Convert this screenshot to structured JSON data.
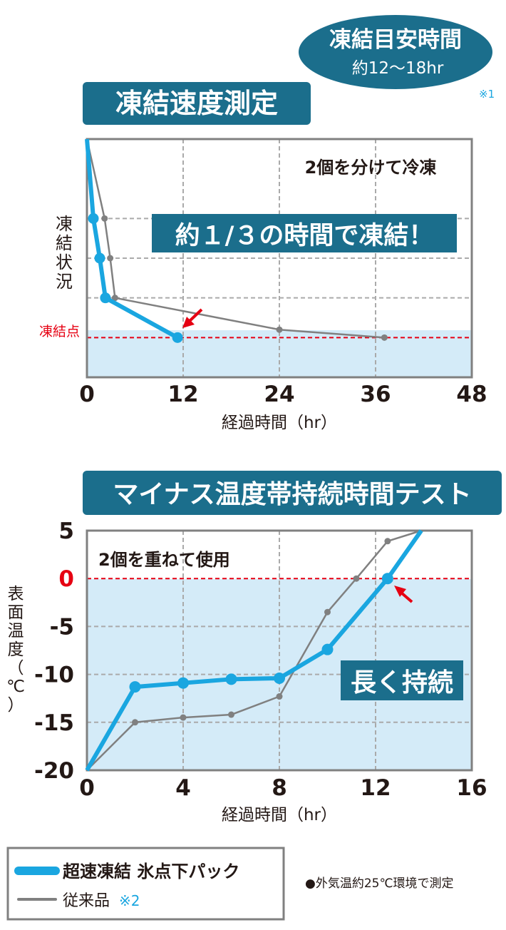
{
  "colors": {
    "badge_bg": "#1b6e8c",
    "super_line": "#1aa6e0",
    "conventional_line": "#808080",
    "freeze_line": "#e60012",
    "shade": "#d4ebf8",
    "frame": "#808080",
    "grid": "#aaaaaa",
    "text": "#231815",
    "red_text": "#e60012"
  },
  "badge": {
    "title": "凍結目安時間",
    "subtitle": "約12～18hr",
    "note": "※1"
  },
  "legend": {
    "super_label": "超速凍結 氷点下パック",
    "conventional_label": "従来品",
    "conventional_note": "※2"
  },
  "footnote": "●外気温約25℃環境で測定",
  "chart_data": [
    {
      "type": "line",
      "title": "凍結速度測定",
      "annotation_top": "2個を分けて冷凍",
      "callout": "約１/３の時間で凍結！",
      "xlabel": "経過時間（hr）",
      "ylabel": "凍結状況",
      "freeze_label": "凍結点",
      "x_ticks": [
        "0",
        "12",
        "24",
        "36",
        "48"
      ],
      "xlim": [
        0,
        48
      ],
      "ylim": [
        0,
        6
      ],
      "y_gridlines": [
        1,
        2,
        3,
        4,
        5
      ],
      "freeze_point": 1,
      "shade_below_freeze": true,
      "grid": true,
      "series": [
        {
          "key": "super",
          "name": "超速凍結 氷点下パック",
          "x": [
            0,
            0.8,
            1.6,
            2.3,
            11.3
          ],
          "y": [
            6,
            4,
            3,
            2,
            1
          ]
        },
        {
          "key": "conventional",
          "name": "従来品",
          "x": [
            0,
            2.2,
            2.9,
            3.5,
            24,
            37.1
          ],
          "y": [
            6,
            4,
            3,
            2,
            1.2,
            1
          ]
        }
      ]
    },
    {
      "type": "line",
      "title": "マイナス温度帯持続時間テスト",
      "annotation_top": "2個を重ねて使用",
      "callout": "長く持続",
      "xlabel": "経過時間（hr）",
      "ylabel": "表面温度（℃）",
      "x_ticks": [
        "0",
        "4",
        "8",
        "12",
        "16"
      ],
      "y_ticks": [
        "5",
        "0",
        "-5",
        "-10",
        "-15",
        "-20"
      ],
      "y_tick_values": [
        5,
        0,
        -5,
        -10,
        -15,
        -20
      ],
      "xlim": [
        0,
        16
      ],
      "ylim": [
        -20,
        5
      ],
      "freeze_point": 0,
      "shade_below_freeze": true,
      "grid": true,
      "series": [
        {
          "key": "super",
          "name": "超速凍結 氷点下パック",
          "x": [
            0,
            2,
            4,
            6,
            8,
            10,
            12.5,
            13.9
          ],
          "y": [
            -20,
            -11.3,
            -10.9,
            -10.5,
            -10.4,
            -7.4,
            0,
            5
          ]
        },
        {
          "key": "conventional",
          "name": "従来品",
          "x": [
            0,
            2,
            4,
            6,
            8,
            10,
            11.2,
            12.5,
            13.9
          ],
          "y": [
            -20,
            -15,
            -14.5,
            -14.2,
            -12.3,
            -3.5,
            0,
            3.9,
            5
          ]
        }
      ]
    }
  ]
}
